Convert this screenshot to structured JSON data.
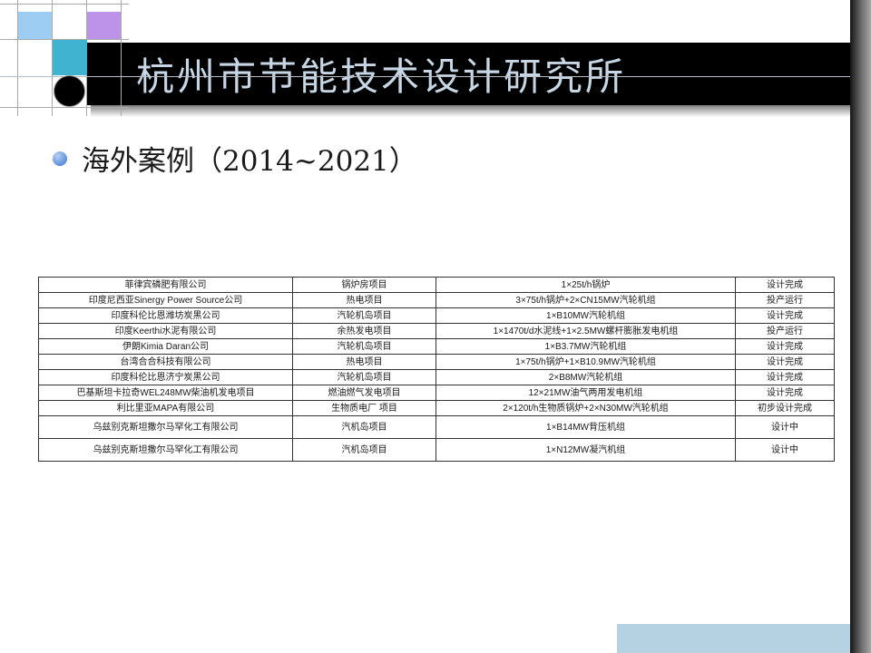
{
  "header": {
    "title": "杭州市节能技术设计研究所"
  },
  "content": {
    "bullet_text": "海外案例（2014~2021）"
  },
  "table": {
    "rows": [
      [
        "菲律宾磷肥有限公司",
        "锅炉房项目",
        "1×25t/h锅炉",
        "设计完成"
      ],
      [
        "印度尼西亚Sinergy Power Source公司",
        "热电项目",
        "3×75t/h锅炉+2×CN15MW汽轮机组",
        "投产运行"
      ],
      [
        "印度科伦比恩潍坊炭黑公司",
        "汽轮机岛项目",
        "1×B10MW汽轮机组",
        "设计完成"
      ],
      [
        "印度Keerthi水泥有限公司",
        "余热发电项目",
        "1×1470t/d水泥线+1×2.5MW螺杆膨胀发电机组",
        "投产运行"
      ],
      [
        "伊朗Kimia Daran公司",
        "汽轮机岛项目",
        "1×B3.7MW汽轮机组",
        "设计完成"
      ],
      [
        "台湾合合科技有限公司",
        "热电项目",
        "1×75t/h锅炉+1×B10.9MW汽轮机组",
        "设计完成"
      ],
      [
        "印度科伦比恩济宁炭黑公司",
        "汽轮机岛项目",
        "2×B8MW汽轮机组",
        "设计完成"
      ],
      [
        "巴基斯坦卡拉奇WEL248MW柴油机发电项目",
        "燃油燃气发电项目",
        "12×21MW油气两用发电机组",
        "设计完成"
      ],
      [
        "利比里亚MAPA有限公司",
        "生物质电厂 项目",
        "2×120t/h生物质锅炉+2×N30MW汽轮机组",
        "初步设计完成"
      ],
      [
        "乌兹别克斯坦撒尔马罕化工有限公司",
        "汽机岛项目",
        "1×B14MW背压机组",
        "设计中"
      ],
      [
        "乌兹别克斯坦撒尔马罕化工有限公司",
        "汽机岛项目",
        "1×N12MW凝汽机组",
        "设计中"
      ]
    ]
  },
  "colors": {
    "square_blue": "#9ecdf4",
    "square_purple": "#bd93ea",
    "square_teal": "#3fb3cf",
    "footer_bar": "#b5d2e2",
    "title_text": "#c6d6e4"
  }
}
